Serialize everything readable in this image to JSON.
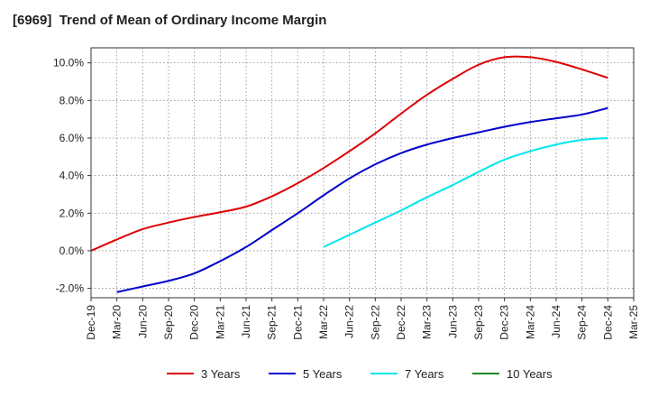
{
  "chart_data": {
    "type": "line",
    "title": "[6969]  Trend of Mean of Ordinary Income Margin",
    "xlabel": "",
    "ylabel": "",
    "x": [
      "Dec-19",
      "Mar-20",
      "Jun-20",
      "Sep-20",
      "Dec-20",
      "Mar-21",
      "Jun-21",
      "Sep-21",
      "Dec-21",
      "Mar-22",
      "Jun-22",
      "Sep-22",
      "Dec-22",
      "Mar-23",
      "Jun-23",
      "Sep-23",
      "Dec-23",
      "Mar-24",
      "Jun-24",
      "Sep-24",
      "Dec-24",
      "Mar-25"
    ],
    "y_ticks": [
      "-2.0%",
      "0.0%",
      "2.0%",
      "4.0%",
      "6.0%",
      "8.0%",
      "10.0%"
    ],
    "ylim": [
      -2.5,
      10.8
    ],
    "grid": true,
    "legend_position": "bottom",
    "series": [
      {
        "name": "3 Years",
        "color": "#dd0000",
        "values": [
          0.0,
          0.6,
          1.15,
          1.5,
          1.8,
          2.05,
          2.35,
          2.9,
          3.6,
          4.4,
          5.3,
          6.25,
          7.3,
          8.3,
          9.15,
          9.9,
          10.3,
          10.3,
          10.05,
          9.65,
          9.2,
          null
        ]
      },
      {
        "name": "5 Years",
        "color": "#0000cc",
        "values": [
          null,
          -2.2,
          -1.9,
          -1.6,
          -1.2,
          -0.55,
          0.2,
          1.1,
          2.0,
          2.95,
          3.85,
          4.6,
          5.2,
          5.65,
          6.0,
          6.3,
          6.6,
          6.85,
          7.05,
          7.25,
          7.6,
          null
        ]
      },
      {
        "name": "7 Years",
        "color": "#00e5ee",
        "values": [
          null,
          null,
          null,
          null,
          null,
          null,
          null,
          null,
          null,
          0.2,
          0.85,
          1.5,
          2.15,
          2.85,
          3.5,
          4.2,
          4.85,
          5.3,
          5.65,
          5.9,
          6.0,
          null
        ]
      },
      {
        "name": "10 Years",
        "color": "#228822",
        "values": [
          null,
          null,
          null,
          null,
          null,
          null,
          null,
          null,
          null,
          null,
          null,
          null,
          null,
          null,
          null,
          null,
          null,
          null,
          null,
          null,
          null,
          null
        ]
      }
    ]
  }
}
